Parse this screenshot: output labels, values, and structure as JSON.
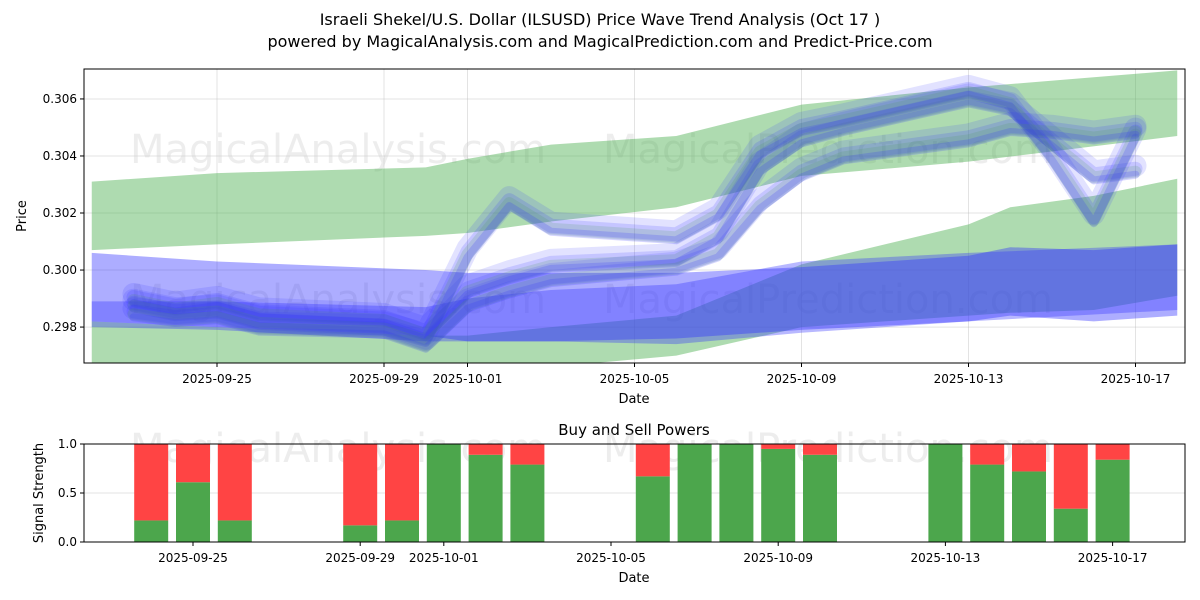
{
  "header": {
    "title": "Israeli Shekel/U.S. Dollar (ILSUSD) Price Wave Trend Analysis (Oct 17 )",
    "subtitle": "powered by MagicalAnalysis.com and MagicalPrediction.com and Predict-Price.com"
  },
  "watermarks": [
    "MagicalAnalysis.com",
    "MagicalPrediction.com"
  ],
  "colors": {
    "green_band": "#4caf50",
    "blue_band": "#3333ff",
    "buy": "#4ca64c",
    "sell": "#ff4444"
  },
  "chart_data": [
    {
      "type": "area",
      "title": "",
      "xlabel": "Date",
      "ylabel": "Price",
      "xlim": [
        "2025-09-21.8",
        "2025-10-18.2"
      ],
      "ylim": [
        0.29674,
        0.30705
      ],
      "grid": true,
      "x_ticks": [
        "2025-09-25",
        "2025-09-29",
        "2025-10-01",
        "2025-10-05",
        "2025-10-09",
        "2025-10-13",
        "2025-10-17"
      ],
      "y_ticks": [
        "0.298",
        "0.300",
        "0.302",
        "0.304",
        "0.306"
      ],
      "bands": [
        {
          "name": "green-upper-channel",
          "color": "green",
          "opacity": 0.45,
          "x": [
            "2025-09-22",
            "2025-09-25",
            "2025-09-30",
            "2025-10-01",
            "2025-10-03",
            "2025-10-06",
            "2025-10-09",
            "2025-10-13",
            "2025-10-18"
          ],
          "upper": [
            0.3031,
            0.3034,
            0.3036,
            0.3039,
            0.3044,
            0.3047,
            0.3058,
            0.3064,
            0.307
          ],
          "lower": [
            0.3007,
            0.3009,
            0.3012,
            0.3013,
            0.3017,
            0.3022,
            0.3033,
            0.3038,
            0.3047
          ]
        },
        {
          "name": "green-lower-channel",
          "color": "green",
          "opacity": 0.45,
          "x": [
            "2025-09-22",
            "2025-09-25",
            "2025-09-30",
            "2025-10-01",
            "2025-10-03",
            "2025-10-06",
            "2025-10-09",
            "2025-10-13",
            "2025-10-14",
            "2025-10-16",
            "2025-10-18"
          ],
          "upper": [
            0.2982,
            0.298,
            0.2977,
            0.2977,
            0.298,
            0.2984,
            0.3002,
            0.3016,
            0.3022,
            0.3026,
            0.3032
          ],
          "lower": [
            0.2962,
            0.2962,
            0.2962,
            0.2964,
            0.2966,
            0.297,
            0.298,
            0.2984,
            0.2985,
            0.2986,
            0.2991
          ]
        },
        {
          "name": "blue-lower-channel",
          "color": "blue",
          "opacity": 0.4,
          "x": [
            "2025-09-22",
            "2025-09-25",
            "2025-09-30",
            "2025-10-01",
            "2025-10-03",
            "2025-10-06",
            "2025-10-09",
            "2025-10-13",
            "2025-10-14",
            "2025-10-16",
            "2025-10-18"
          ],
          "upper": [
            0.3006,
            0.3003,
            0.3,
            0.2999,
            0.2999,
            0.2999,
            0.3001,
            0.3005,
            0.3008,
            0.3007,
            0.3009
          ],
          "lower": [
            0.2982,
            0.298,
            0.2977,
            0.2975,
            0.2975,
            0.2976,
            0.2979,
            0.2982,
            0.2984,
            0.2982,
            0.2984
          ]
        },
        {
          "name": "blue-base-channel",
          "color": "blue",
          "opacity": 0.35,
          "x": [
            "2025-09-22",
            "2025-09-25",
            "2025-09-30",
            "2025-10-01",
            "2025-10-03",
            "2025-10-06",
            "2025-10-09",
            "2025-10-13",
            "2025-10-18"
          ],
          "upper": [
            0.2989,
            0.2989,
            0.2987,
            0.299,
            0.2993,
            0.2995,
            0.3003,
            0.3006,
            0.3009
          ],
          "lower": [
            0.298,
            0.2979,
            0.2975,
            0.2975,
            0.2975,
            0.2974,
            0.2978,
            0.2982,
            0.2986
          ]
        }
      ],
      "waves": [
        {
          "x": [
            "2025-09-23",
            "2025-09-24",
            "2025-09-25",
            "2025-09-26",
            "2025-09-29",
            "2025-09-30",
            "2025-10-01",
            "2025-10-02",
            "2025-10-03",
            "2025-10-06",
            "2025-10-07",
            "2025-10-08",
            "2025-10-09",
            "2025-10-10",
            "2025-10-13",
            "2025-10-14",
            "2025-10-15",
            "2025-10-16",
            "2025-10-17"
          ],
          "values": [
            0.299,
            0.2987,
            0.2989,
            0.2985,
            0.2983,
            0.2978,
            0.2993,
            0.2998,
            0.3002,
            0.3004,
            0.3012,
            0.3036,
            0.3046,
            0.305,
            0.306,
            0.3057,
            0.3045,
            0.3033,
            0.3035
          ]
        },
        {
          "x": [
            "2025-09-23",
            "2025-09-24",
            "2025-09-25",
            "2025-09-26",
            "2025-09-29",
            "2025-09-30",
            "2025-10-01",
            "2025-10-02",
            "2025-10-03",
            "2025-10-06",
            "2025-10-07",
            "2025-10-08",
            "2025-10-09",
            "2025-10-10",
            "2025-10-13",
            "2025-10-14",
            "2025-10-15",
            "2025-10-16",
            "2025-10-17"
          ],
          "values": [
            0.2988,
            0.2985,
            0.2986,
            0.2982,
            0.298,
            0.2976,
            0.3006,
            0.3024,
            0.3015,
            0.3012,
            0.302,
            0.3042,
            0.305,
            0.3053,
            0.3063,
            0.3059,
            0.304,
            0.3018,
            0.3048
          ]
        },
        {
          "x": [
            "2025-09-23",
            "2025-09-24",
            "2025-09-25",
            "2025-09-26",
            "2025-09-29",
            "2025-09-30",
            "2025-10-01",
            "2025-10-02",
            "2025-10-03",
            "2025-10-06",
            "2025-10-07",
            "2025-10-08",
            "2025-10-09",
            "2025-10-10",
            "2025-10-13",
            "2025-10-14",
            "2025-10-15",
            "2025-10-16",
            "2025-10-17"
          ],
          "values": [
            0.2985,
            0.2983,
            0.2984,
            0.298,
            0.2979,
            0.2974,
            0.2988,
            0.2993,
            0.2997,
            0.3001,
            0.3006,
            0.3023,
            0.3034,
            0.304,
            0.3046,
            0.305,
            0.3049,
            0.3047,
            0.3049
          ]
        }
      ]
    },
    {
      "type": "bar",
      "title": "Buy and Sell Powers",
      "xlabel": "Date",
      "ylabel": "Signal Strength",
      "ylim": [
        0,
        1.0
      ],
      "y_ticks": [
        "0.0",
        "0.5",
        "1.0"
      ],
      "x_ticks": [
        "2025-09-25",
        "2025-09-29",
        "2025-10-01",
        "2025-10-05",
        "2025-10-09",
        "2025-10-13",
        "2025-10-17"
      ],
      "categories": [
        "2025-09-24",
        "2025-09-25",
        "2025-09-26",
        "2025-09-29",
        "2025-09-30",
        "2025-10-01",
        "2025-10-02",
        "2025-10-03",
        "2025-10-06",
        "2025-10-07",
        "2025-10-08",
        "2025-10-09",
        "2025-10-10",
        "2025-10-13",
        "2025-10-14",
        "2025-10-15",
        "2025-10-16",
        "2025-10-17"
      ],
      "series": [
        {
          "name": "Buy",
          "values": [
            0.22,
            0.61,
            0.22,
            0.17,
            0.22,
            1.0,
            0.89,
            0.79,
            0.67,
            1.0,
            1.0,
            0.95,
            0.89,
            1.0,
            0.79,
            0.72,
            0.34,
            0.84
          ]
        },
        {
          "name": "Sell",
          "values": [
            0.78,
            0.39,
            0.78,
            0.83,
            0.78,
            0.0,
            0.11,
            0.21,
            0.33,
            0.0,
            0.0,
            0.05,
            0.11,
            0.0,
            0.21,
            0.28,
            0.66,
            0.16
          ]
        }
      ]
    }
  ]
}
